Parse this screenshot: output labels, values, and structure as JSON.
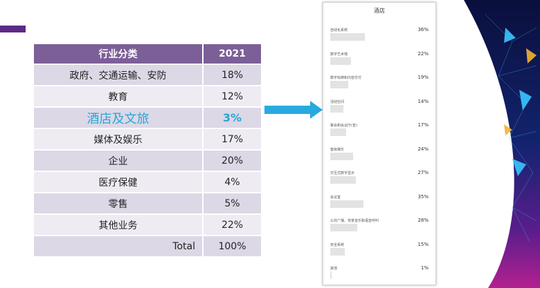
{
  "industry_table": {
    "header": {
      "category": "行业分类",
      "year": "2021"
    },
    "rows": [
      {
        "category": "政府、交通运输、安防",
        "value": "18%"
      },
      {
        "category": "教育",
        "value": "12%"
      },
      {
        "category": "酒店及文旅",
        "value": "3%",
        "highlighted": true
      },
      {
        "category": "媒体及娱乐",
        "value": "17%"
      },
      {
        "category": "企业",
        "value": "20%"
      },
      {
        "category": "医疗保健",
        "value": "4%"
      },
      {
        "category": "零售",
        "value": "5%"
      },
      {
        "category": "其他业务",
        "value": "22%"
      }
    ],
    "total": {
      "label": "Total",
      "value": "100%"
    }
  },
  "colors": {
    "accent": "#5b2a86",
    "table_header": "#7d5f98",
    "highlight_text": "#2aa5d8",
    "arrow": "#29a9e1"
  },
  "hotel_chart": {
    "title": "酒店",
    "items": [
      {
        "label": "自动化系统",
        "value": 36,
        "text": "36%"
      },
      {
        "label": "数字艺术墙",
        "value": 22,
        "text": "22%"
      },
      {
        "label": "数字标牌和内容交付",
        "value": 19,
        "text": "19%"
      },
      {
        "label": "活动空间",
        "value": 14,
        "text": "14%"
      },
      {
        "label": "宴会和会议厅(音)",
        "value": 17,
        "text": "17%"
      },
      {
        "label": "客房娱乐",
        "value": 24,
        "text": "24%"
      },
      {
        "label": "交互式数字显示",
        "value": 27,
        "text": "27%"
      },
      {
        "label": "会议室",
        "value": 35,
        "text": "35%"
      },
      {
        "label": "公共广播、背景音乐和语音呼叫",
        "value": 28,
        "text": "28%"
      },
      {
        "label": "安全系统",
        "value": 15,
        "text": "15%"
      },
      {
        "label": "其他",
        "value": 1,
        "text": "1%"
      }
    ]
  }
}
